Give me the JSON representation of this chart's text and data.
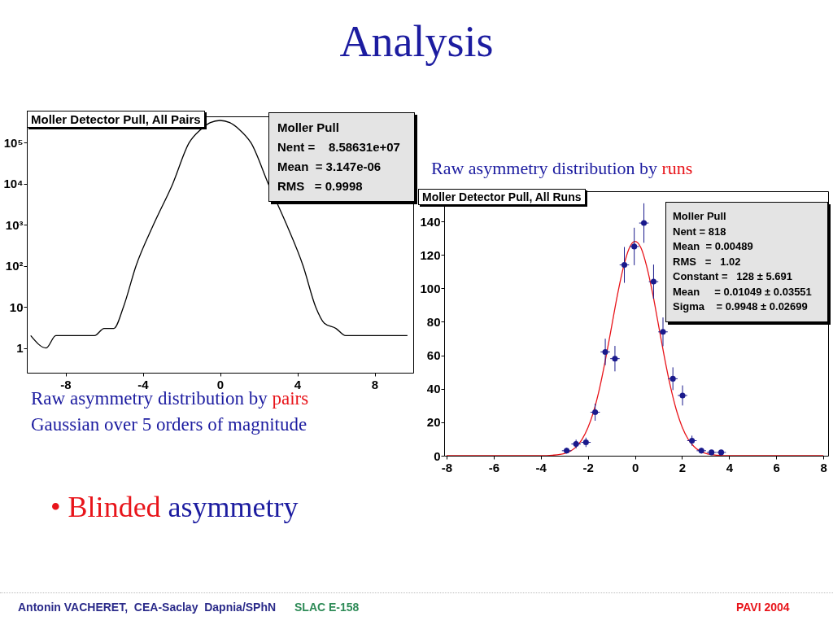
{
  "chart_data": [
    {
      "type": "line",
      "title": "Moller Detector Pull, All Pairs",
      "subtitle": "Raw asymmetry distribution by pairs\nGaussian over 5 orders of magnitude",
      "annotations": [
        "Moller Pull",
        "Nent =    8.58631e+07",
        "Mean  = 3.147e-06",
        "RMS   = 0.9998"
      ],
      "log": true,
      "xlim": [
        -10,
        10
      ],
      "xticks": [
        -8,
        -4,
        0,
        4,
        8
      ],
      "ylim": [
        0.25,
        440000
      ],
      "yticks": [
        1,
        10,
        {
          "value": 100,
          "label": "10²"
        },
        {
          "value": 1000,
          "label": "10³"
        },
        {
          "value": 10000,
          "label": "10⁴"
        },
        {
          "value": 100000,
          "label": "10⁵"
        }
      ],
      "series": [
        {
          "color": "#000000",
          "x": [
            -9.8,
            -9,
            -8.5,
            -7.5,
            -6.5,
            -6,
            -5.5,
            -5,
            -4.35,
            -3.45,
            -2.45,
            -1.6,
            -1,
            -0.5,
            0,
            0.5,
            1,
            1.6,
            2.5,
            3.45,
            4.3,
            4.95,
            5.4,
            6,
            6.5,
            7.5,
            8.5,
            9.7
          ],
          "values": [
            2,
            1,
            2,
            2,
            2,
            3,
            3,
            10,
            100,
            1000,
            10000,
            100000,
            210000,
            310000,
            350000,
            310000,
            210000,
            100000,
            10000,
            1000,
            100,
            10,
            4,
            3,
            2,
            2,
            2,
            2
          ]
        }
      ]
    },
    {
      "type": "scatter",
      "title": "Moller Detector Pull, All Runs",
      "subtitle": "Raw asymmetry distribution by runs",
      "annotations": [
        "Moller Pull",
        "Nent = 818",
        "Mean  = 0.00489",
        "RMS   =   1.02",
        "Constant =   128 ± 5.691",
        "Mean     = 0.01049 ± 0.03551",
        "Sigma    = 0.9948 ± 0.02699"
      ],
      "xlim": [
        -8.1,
        8.2
      ],
      "xticks": [
        -8,
        -6,
        -4,
        -2,
        0,
        2,
        4,
        6,
        8
      ],
      "ylim": [
        0,
        158
      ],
      "yticks": [
        0,
        20,
        40,
        60,
        80,
        100,
        120,
        140
      ],
      "series": [
        {
          "type": "line",
          "color": "#e8141a",
          "x": [
            -8,
            -4,
            -3.5,
            -3,
            -2.5,
            -2.25,
            -2,
            -1.75,
            -1.5,
            -1.25,
            -1,
            -0.75,
            -0.5,
            -0.25,
            0,
            0.25,
            0.5,
            0.75,
            1,
            1.25,
            1.5,
            1.75,
            2,
            2.25,
            2.5,
            3,
            3.5,
            4,
            8
          ],
          "values": [
            0,
            0,
            0.3,
            1.3,
            5.3,
            9.7,
            16.6,
            26.7,
            40.4,
            57.5,
            76.5,
            95.6,
            112,
            123.7,
            128,
            124.3,
            113,
            97,
            78,
            58.9,
            41.7,
            27.7,
            17.3,
            10.1,
            5.6,
            1.4,
            0.3,
            0,
            0
          ]
        },
        {
          "type": "scatter",
          "marker": "circle",
          "color": "#1a1a8c",
          "x": [
            -2.9,
            -2.5,
            -2.08,
            -1.69,
            -1.26,
            -0.85,
            -0.45,
            -0.03,
            0.38,
            0.79,
            1.19,
            1.61,
            2.02,
            2.42,
            2.82,
            3.25,
            3.66
          ],
          "values": [
            3,
            7,
            8,
            26,
            62,
            58,
            114,
            125,
            139,
            104,
            74,
            46,
            36,
            9,
            3,
            2,
            2
          ],
          "errors": [
            1.7,
            2.6,
            2.8,
            5.1,
            7.9,
            7.6,
            10.7,
            11.2,
            11.8,
            10.2,
            8.6,
            6.8,
            6,
            3,
            1.7,
            1.4,
            1.4
          ],
          "xerrors": [
            0.2,
            0.2,
            0.2,
            0.2,
            0.2,
            0.2,
            0.2,
            0.2,
            0.2,
            0.2,
            0.2,
            0.2,
            0.2,
            0.2,
            0.2,
            0.2,
            0.2
          ]
        }
      ]
    },
    {
      "type": "other",
      "title": "Analysis",
      "annotations": [
        "• Blinded asymmetry",
        "Antonin VACHERET,  CEA-Saclay  Dapnia/SPhN",
        "SLAC E-158",
        "PAVI 2004"
      ]
    }
  ]
}
